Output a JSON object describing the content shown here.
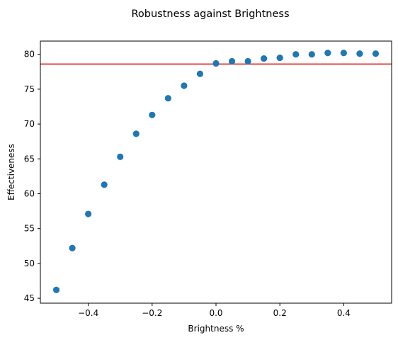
{
  "chart_data": {
    "type": "scatter",
    "title": "Robustness against Brightness",
    "xlabel": "Brightness %",
    "ylabel": "Effectiveness",
    "xlim": [
      -0.55,
      0.55
    ],
    "ylim": [
      44.3,
      81.9
    ],
    "xticks": [
      -0.4,
      -0.2,
      0.0,
      0.2,
      0.4
    ],
    "xtick_labels": [
      "−0.4",
      "−0.2",
      "0.0",
      "0.2",
      "0.4"
    ],
    "yticks": [
      45,
      50,
      55,
      60,
      65,
      70,
      75,
      80
    ],
    "ytick_labels": [
      "45",
      "50",
      "55",
      "60",
      "65",
      "70",
      "75",
      "80"
    ],
    "grid": false,
    "series": [
      {
        "x": [
          -0.5,
          -0.45,
          -0.4,
          -0.35,
          -0.3,
          -0.25,
          -0.2,
          -0.15,
          -0.1,
          -0.05,
          0.0,
          0.05,
          0.1,
          0.15,
          0.2,
          0.25,
          0.3,
          0.35,
          0.4,
          0.45,
          0.5
        ],
        "y": [
          46.2,
          52.2,
          57.1,
          61.3,
          65.3,
          68.6,
          71.3,
          73.7,
          75.5,
          77.2,
          78.7,
          79.0,
          79.0,
          79.4,
          79.5,
          80.0,
          80.0,
          80.2,
          80.2,
          80.1,
          80.1
        ],
        "color": "#1f77b4",
        "marker": "circle"
      }
    ],
    "reference_line": {
      "orientation": "horizontal",
      "y": 78.6,
      "color": "#e41a1c"
    }
  }
}
